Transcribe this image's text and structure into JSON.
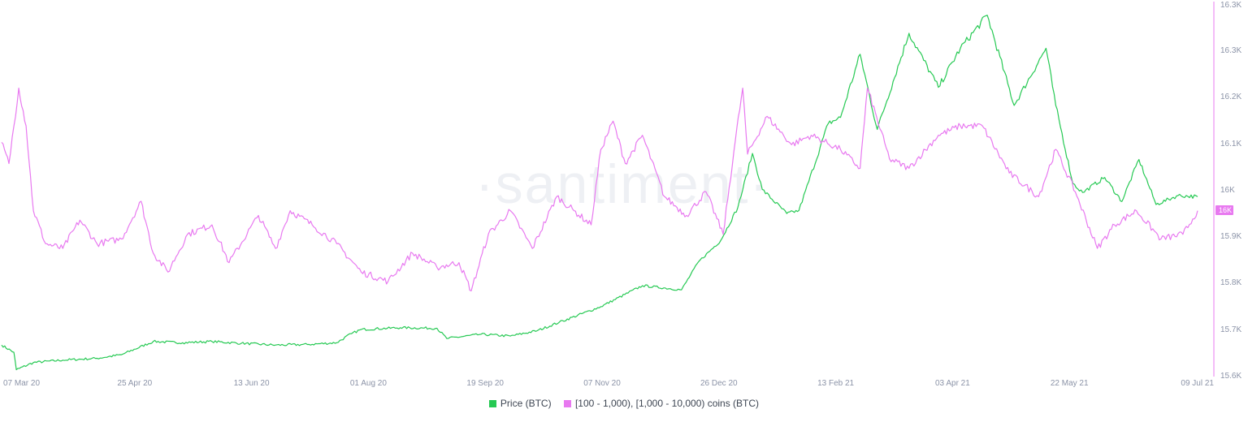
{
  "watermark": "·santiment·",
  "colors": {
    "price": "#26c953",
    "holders": "#e879f0",
    "axis": "#e879f0",
    "tick": "#8b93a7"
  },
  "legend": {
    "price_label": "Price (BTC)",
    "holders_label": "[100 - 1,000), [1,000 - 10,000) coins (BTC)"
  },
  "chart_data": {
    "type": "line",
    "x_ticks": [
      "07 Mar 20",
      "25 Apr 20",
      "13 Jun 20",
      "01 Aug 20",
      "19 Sep 20",
      "07 Nov 20",
      "26 Dec 20",
      "13 Feb 21",
      "03 Apr 21",
      "22 May 21",
      "09 Jul 21"
    ],
    "x_range": [
      "2020-03-07",
      "2021-07-09"
    ],
    "y_ticks": [
      "16.3K",
      "16.3K",
      "16.2K",
      "16.1K",
      "16K",
      "15.9K",
      "15.8K",
      "15.7K",
      "15.6K"
    ],
    "y_axis_side": "right",
    "current_value_badge": "16K",
    "legend_position": "bottom-center",
    "grid": false,
    "series": [
      {
        "name": "Price (BTC)",
        "axis": "hidden",
        "ylim": [
          4000,
          66000
        ],
        "points": [
          [
            "2020-03-07",
            9100
          ],
          [
            "2020-03-12",
            7900
          ],
          [
            "2020-03-13",
            5000
          ],
          [
            "2020-03-20",
            6200
          ],
          [
            "2020-04-01",
            6600
          ],
          [
            "2020-04-15",
            6900
          ],
          [
            "2020-04-25",
            7500
          ],
          [
            "2020-05-08",
            9700
          ],
          [
            "2020-05-20",
            9500
          ],
          [
            "2020-06-01",
            9700
          ],
          [
            "2020-06-13",
            9400
          ],
          [
            "2020-06-27",
            9100
          ],
          [
            "2020-07-10",
            9200
          ],
          [
            "2020-07-22",
            9500
          ],
          [
            "2020-07-28",
            11000
          ],
          [
            "2020-08-01",
            11700
          ],
          [
            "2020-08-17",
            12000
          ],
          [
            "2020-09-01",
            11900
          ],
          [
            "2020-09-05",
            10200
          ],
          [
            "2020-09-19",
            10900
          ],
          [
            "2020-10-01",
            10600
          ],
          [
            "2020-10-12",
            11500
          ],
          [
            "2020-10-21",
            12900
          ],
          [
            "2020-11-07",
            15500
          ],
          [
            "2020-11-24",
            19000
          ],
          [
            "2020-12-10",
            18300
          ],
          [
            "2020-12-17",
            23000
          ],
          [
            "2020-12-26",
            26500
          ],
          [
            "2021-01-02",
            32000
          ],
          [
            "2021-01-08",
            41000
          ],
          [
            "2021-01-12",
            35000
          ],
          [
            "2021-01-22",
            31000
          ],
          [
            "2021-01-27",
            31500
          ],
          [
            "2021-02-08",
            46000
          ],
          [
            "2021-02-13",
            47000
          ],
          [
            "2021-02-21",
            57500
          ],
          [
            "2021-02-28",
            45000
          ],
          [
            "2021-03-13",
            61000
          ],
          [
            "2021-03-25",
            52000
          ],
          [
            "2021-04-03",
            58500
          ],
          [
            "2021-04-14",
            64000
          ],
          [
            "2021-04-25",
            49000
          ],
          [
            "2021-05-08",
            58500
          ],
          [
            "2021-05-12",
            49000
          ],
          [
            "2021-05-19",
            36000
          ],
          [
            "2021-05-23",
            34500
          ],
          [
            "2021-06-01",
            37000
          ],
          [
            "2021-06-08",
            33000
          ],
          [
            "2021-06-15",
            40000
          ],
          [
            "2021-06-22",
            32500
          ],
          [
            "2021-07-01",
            34000
          ],
          [
            "2021-07-09",
            33800
          ]
        ]
      },
      {
        "name": "[100 - 1,000), [1,000 - 10,000) coins (BTC)",
        "axis": "right",
        "ylim": [
          15600,
          16390
        ],
        "points": [
          [
            "2020-03-07",
            16095
          ],
          [
            "2020-03-10",
            16050
          ],
          [
            "2020-03-14",
            16210
          ],
          [
            "2020-03-17",
            16130
          ],
          [
            "2020-03-20",
            15950
          ],
          [
            "2020-03-25",
            15880
          ],
          [
            "2020-04-01",
            15870
          ],
          [
            "2020-04-08",
            15930
          ],
          [
            "2020-04-15",
            15880
          ],
          [
            "2020-04-25",
            15890
          ],
          [
            "2020-05-03",
            15970
          ],
          [
            "2020-05-08",
            15860
          ],
          [
            "2020-05-14",
            15820
          ],
          [
            "2020-05-22",
            15900
          ],
          [
            "2020-06-01",
            15920
          ],
          [
            "2020-06-08",
            15840
          ],
          [
            "2020-06-20",
            15940
          ],
          [
            "2020-06-27",
            15870
          ],
          [
            "2020-07-03",
            15950
          ],
          [
            "2020-07-12",
            15920
          ],
          [
            "2020-07-22",
            15880
          ],
          [
            "2020-08-01",
            15820
          ],
          [
            "2020-08-12",
            15800
          ],
          [
            "2020-08-22",
            15860
          ],
          [
            "2020-09-01",
            15830
          ],
          [
            "2020-09-10",
            15840
          ],
          [
            "2020-09-15",
            15780
          ],
          [
            "2020-09-22",
            15900
          ],
          [
            "2020-10-01",
            15950
          ],
          [
            "2020-10-10",
            15870
          ],
          [
            "2020-10-20",
            15980
          ],
          [
            "2020-10-27",
            15950
          ],
          [
            "2020-11-03",
            15920
          ],
          [
            "2020-11-07",
            16080
          ],
          [
            "2020-11-12",
            16140
          ],
          [
            "2020-11-17",
            16050
          ],
          [
            "2020-11-24",
            16110
          ],
          [
            "2020-12-03",
            15980
          ],
          [
            "2020-12-12",
            15940
          ],
          [
            "2020-12-20",
            15990
          ],
          [
            "2020-12-27",
            15900
          ],
          [
            "2021-01-01",
            16100
          ],
          [
            "2021-01-04",
            16210
          ],
          [
            "2021-01-06",
            16070
          ],
          [
            "2021-01-14",
            16150
          ],
          [
            "2021-01-24",
            16090
          ],
          [
            "2021-02-01",
            16110
          ],
          [
            "2021-02-13",
            16080
          ],
          [
            "2021-02-21",
            16040
          ],
          [
            "2021-02-24",
            16210
          ],
          [
            "2021-03-05",
            16060
          ],
          [
            "2021-03-13",
            16040
          ],
          [
            "2021-03-25",
            16110
          ],
          [
            "2021-04-03",
            16130
          ],
          [
            "2021-04-12",
            16130
          ],
          [
            "2021-04-23",
            16030
          ],
          [
            "2021-05-05",
            15980
          ],
          [
            "2021-05-12",
            16080
          ],
          [
            "2021-05-20",
            15990
          ],
          [
            "2021-05-29",
            15870
          ],
          [
            "2021-06-05",
            15920
          ],
          [
            "2021-06-14",
            15950
          ],
          [
            "2021-06-24",
            15890
          ],
          [
            "2021-07-03",
            15900
          ],
          [
            "2021-07-09",
            15950
          ]
        ]
      }
    ]
  }
}
